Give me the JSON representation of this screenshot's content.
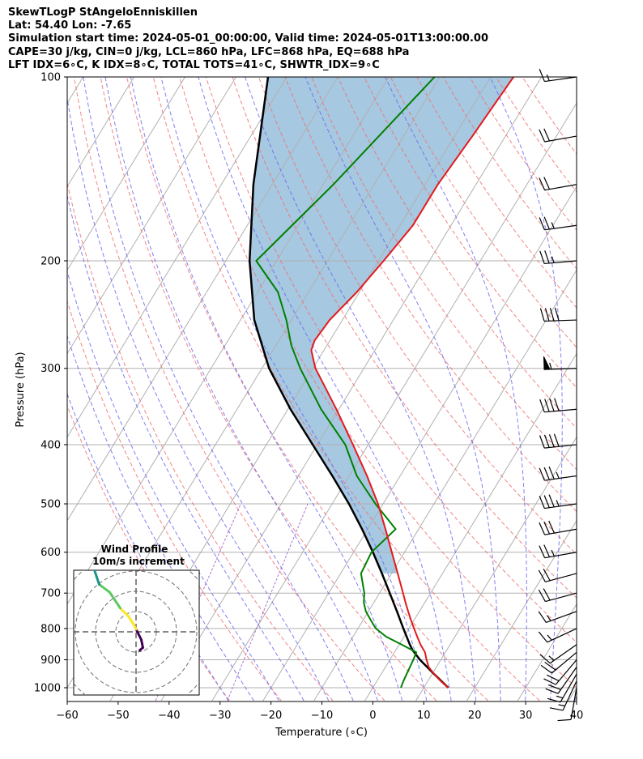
{
  "header": {
    "title": "SkewTLogP StAngeloEnniskillen",
    "location": "Lat: 54.40   Lon: -7.65",
    "times": "Simulation start time: 2024-05-01_00:00:00, Valid time: 2024-05-01T13:00:00.00",
    "params": "CAPE=30 j/kg, CIN=0 j/kg, LCL=860 hPa, LFC=868 hPa, EQ=688 hPa",
    "indices": "LFT IDX=6∘C, K IDX=8∘C, TOTAL TOTS=41∘C, SHWTR_IDX=9∘C"
  },
  "chart_data": {
    "type": "skew-t log-p",
    "xlabel": "Temperature (∘C)",
    "ylabel": "Pressure (hPa)",
    "xlim": [
      -60,
      40
    ],
    "ylim": [
      1050,
      100
    ],
    "y_scale": "log",
    "x_ticks": [
      "−60",
      "−50",
      "−40",
      "−30",
      "−20",
      "−10",
      "0",
      "10",
      "20",
      "30",
      "40"
    ],
    "y_ticks": [
      "1000",
      "900",
      "800",
      "700",
      "600",
      "500",
      "400",
      "300",
      "200",
      "100"
    ],
    "grid": true,
    "colors": {
      "temperature": "#e41a1c",
      "dewpoint": "#008000",
      "parcel": "#000000",
      "cape_fill": "#a6c8e1",
      "dry_adiabats": "#f07070",
      "moist_adiabats": "#6a6af0",
      "mixing_ratio": "#9a4fc0",
      "isotherms": "#b0b0b0"
    },
    "temperature_profile": {
      "p": [
        1000,
        975,
        950,
        925,
        900,
        875,
        850,
        825,
        800,
        775,
        750,
        725,
        700,
        650,
        600,
        550,
        500,
        450,
        400,
        350,
        300,
        290,
        280,
        270,
        250,
        225,
        200,
        175,
        150,
        125,
        100
      ],
      "t": [
        14.8,
        12.5,
        10.4,
        8.5,
        7.2,
        6.0,
        4.2,
        2.6,
        1.0,
        -0.6,
        -2.2,
        -3.8,
        -5.4,
        -8.8,
        -12.5,
        -16.5,
        -21.0,
        -26.5,
        -33.0,
        -40.5,
        -49.5,
        -51.0,
        -52.5,
        -53.0,
        -52.5,
        -50.5,
        -49.0,
        -47.5,
        -47.5,
        -46.5,
        -45.5
      ]
    },
    "dewpoint_profile": {
      "p": [
        1000,
        975,
        950,
        925,
        900,
        875,
        850,
        825,
        800,
        775,
        750,
        725,
        700,
        650,
        600,
        550,
        500,
        450,
        400,
        350,
        300,
        275,
        250,
        225,
        200,
        150,
        100
      ],
      "td": [
        5.5,
        5.2,
        5.0,
        4.8,
        4.6,
        4.3,
        0.5,
        -3.5,
        -6.5,
        -8.5,
        -10.5,
        -12.0,
        -13.0,
        -16.0,
        -16.5,
        -14.5,
        -21.5,
        -28.5,
        -34.5,
        -43.5,
        -52.5,
        -57.0,
        -61.0,
        -66.0,
        -74.0,
        -68.0,
        -61.0
      ]
    },
    "parcel_profile": {
      "p": [
        1000,
        950,
        900,
        868,
        850,
        800,
        750,
        700,
        650,
        600,
        550,
        500,
        450,
        400,
        350,
        300,
        250,
        200,
        150,
        100
      ],
      "t": [
        14.8,
        10.4,
        5.9,
        3.3,
        2.1,
        -1.1,
        -4.4,
        -8.0,
        -11.9,
        -16.2,
        -21.1,
        -26.7,
        -33.3,
        -40.9,
        -49.5,
        -58.6,
        -67.3,
        -75.3,
        -83.7,
        -93.7
      ]
    },
    "wind_barbs": {
      "p": [
        1000,
        975,
        950,
        925,
        900,
        875,
        850,
        800,
        750,
        700,
        650,
        600,
        550,
        500,
        450,
        400,
        350,
        300,
        250,
        200,
        175,
        150,
        125,
        100
      ],
      "speed_kt": [
        10,
        15,
        15,
        20,
        20,
        20,
        15,
        15,
        15,
        20,
        20,
        25,
        30,
        35,
        35,
        40,
        40,
        55,
        40,
        25,
        25,
        20,
        20,
        15
      ],
      "direction_deg": [
        190,
        205,
        210,
        215,
        220,
        230,
        235,
        245,
        250,
        255,
        255,
        260,
        260,
        262,
        262,
        264,
        265,
        268,
        268,
        265,
        262,
        260,
        260,
        262
      ]
    },
    "hodograph": {
      "title": "Wind Profile",
      "subtitle": "10m/s increment",
      "u": [
        0.7,
        1.3,
        1.0,
        0.0,
        -0.5,
        -1.5,
        -3.0,
        -4.0,
        -5.0,
        -7.0,
        -7.5,
        -8.0,
        -9.0,
        -10.0,
        -11.0,
        -12.0
      ],
      "v": [
        -3.5,
        -3.0,
        -1.5,
        0.5,
        1.5,
        3.0,
        4.5,
        6.0,
        7.5,
        9.0,
        10.5,
        12.0,
        13.0,
        14.0,
        15.0,
        16.0
      ],
      "ring_count": 4
    }
  }
}
